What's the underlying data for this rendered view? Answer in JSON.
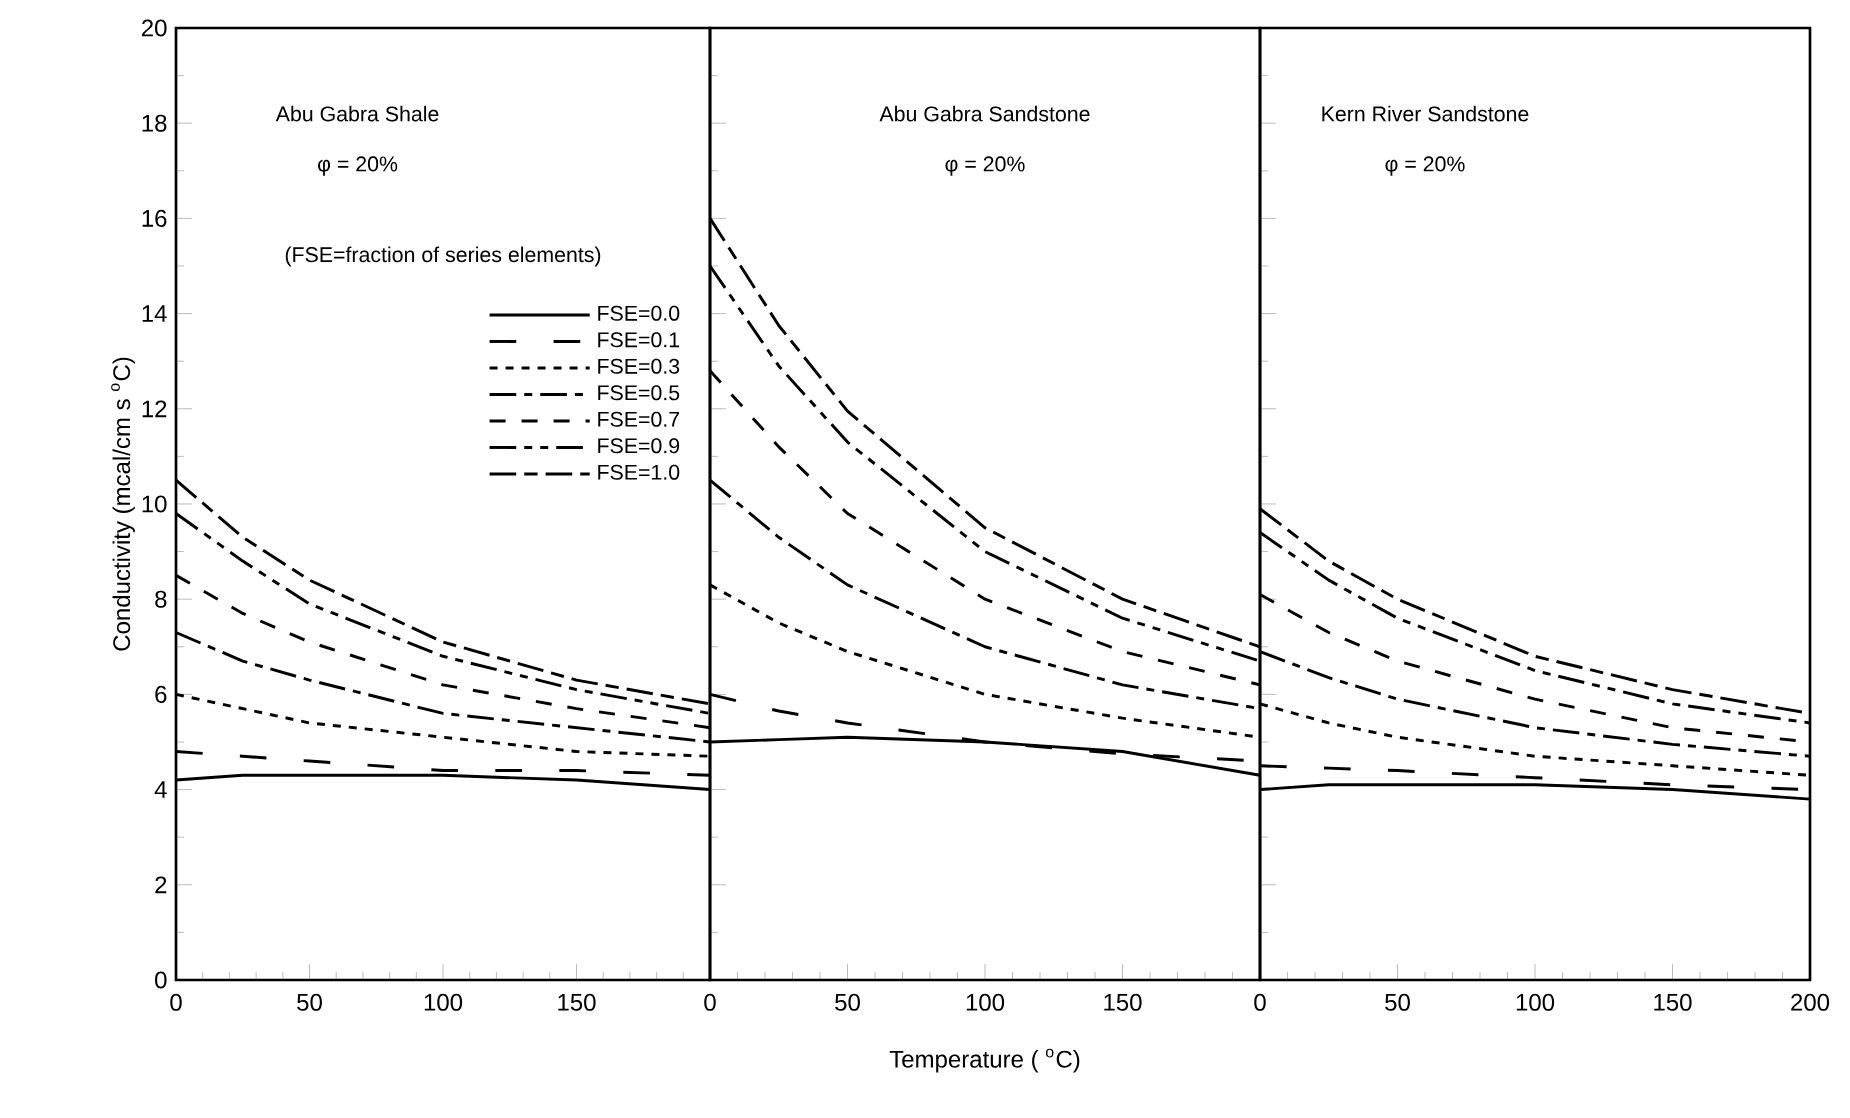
{
  "chart_data": [
    {
      "type": "line",
      "ylabel": "Conductivity (mcal/cm s $^{o}$C)",
      "xlim": [
        0,
        200
      ],
      "ylim": [
        0,
        20
      ],
      "xticks": [
        0,
        50,
        100,
        150,
        {
          "value": 200,
          "label": null
        }
      ],
      "yticks": [
        0,
        2,
        4,
        6,
        8,
        10,
        12,
        14,
        16,
        18,
        20
      ],
      "legend": "top right",
      "annotations": [
        "Abu Gabra Shale",
        "φ = 20%",
        "(FSE=fraction of series elements)"
      ],
      "x": [
        0,
        25,
        50,
        100,
        150,
        200
      ],
      "series": [
        {
          "name": "FSE=0.0",
          "color": "#000000",
          "line_style": "solid",
          "values": [
            4.2,
            4.3,
            4.3,
            4.3,
            4.2,
            4.0
          ]
        },
        {
          "name": "FSE=0.1",
          "color": "#000000",
          "line_style": "dashed",
          "values": [
            4.8,
            4.7,
            4.6,
            4.4,
            4.4,
            4.3
          ]
        },
        {
          "name": "FSE=0.3",
          "color": "#000000",
          "line_style": "dashed",
          "values": [
            6.0,
            5.7,
            5.4,
            5.1,
            4.8,
            4.7
          ]
        },
        {
          "name": "FSE=0.5",
          "color": "#000000",
          "line_style": "dashed",
          "values": [
            7.3,
            6.7,
            6.3,
            5.6,
            5.3,
            5.0
          ]
        },
        {
          "name": "FSE=0.7",
          "color": "#000000",
          "line_style": "dashed",
          "values": [
            8.5,
            7.7,
            7.1,
            6.2,
            5.7,
            5.3
          ]
        },
        {
          "name": "FSE=0.9",
          "color": "#000000",
          "line_style": "dashed",
          "values": [
            9.8,
            8.8,
            7.9,
            6.8,
            6.1,
            5.6
          ]
        },
        {
          "name": "FSE=1.0",
          "color": "#000000",
          "line_style": "dashed",
          "values": [
            10.5,
            9.3,
            8.4,
            7.1,
            6.3,
            5.8
          ]
        }
      ]
    },
    {
      "type": "line",
      "xlabel": "Temperature ( $^{o}$C)",
      "xlim": [
        0,
        200
      ],
      "ylim": [
        0,
        20
      ],
      "xticks": [
        0,
        50,
        100,
        150,
        {
          "value": 200,
          "label": null
        }
      ],
      "yticks": [
        0,
        2,
        4,
        6,
        8,
        10,
        12,
        14,
        16,
        18,
        20
      ],
      "tick_labels": "x",
      "annotations": [
        "Abu Gabra Sandstone",
        "φ = 20%"
      ],
      "x": [
        0,
        25,
        50,
        100,
        150,
        200
      ],
      "series": [
        {
          "color": "#000000",
          "line_style": "solid",
          "values": [
            5.0,
            5.05,
            5.1,
            5.0,
            4.8,
            4.3
          ]
        },
        {
          "color": "#000000",
          "line_style": "dashed",
          "values": [
            6.0,
            5.65,
            5.4,
            5.0,
            4.75,
            4.6
          ]
        },
        {
          "color": "#000000",
          "line_style": "dashed",
          "values": [
            8.3,
            7.5,
            6.9,
            6.0,
            5.5,
            5.1
          ]
        },
        {
          "color": "#000000",
          "line_style": "dashed",
          "values": [
            10.5,
            9.3,
            8.3,
            7.0,
            6.2,
            5.7
          ]
        },
        {
          "color": "#000000",
          "line_style": "dashed",
          "values": [
            12.8,
            11.2,
            9.8,
            8.0,
            6.9,
            6.2
          ]
        },
        {
          "color": "#000000",
          "line_style": "dashed",
          "values": [
            15.0,
            12.9,
            11.3,
            9.0,
            7.6,
            6.7
          ]
        },
        {
          "color": "#000000",
          "line_style": "dashed",
          "values": [
            16.0,
            13.75,
            11.95,
            9.5,
            8.0,
            7.0
          ]
        }
      ]
    },
    {
      "type": "line",
      "xlim": [
        0,
        200
      ],
      "ylim": [
        0,
        20
      ],
      "xticks": [
        0,
        50,
        100,
        150,
        200
      ],
      "yticks": [
        0,
        2,
        4,
        6,
        8,
        10,
        12,
        14,
        16,
        18,
        20
      ],
      "tick_labels": "x",
      "annotations": [
        "Kern River Sandstone",
        "φ = 20%"
      ],
      "x": [
        0,
        25,
        50,
        100,
        150,
        200
      ],
      "series": [
        {
          "color": "#000000",
          "line_style": "solid",
          "values": [
            4.0,
            4.1,
            4.1,
            4.1,
            4.0,
            3.8
          ]
        },
        {
          "color": "#000000",
          "line_style": "dashed",
          "values": [
            4.5,
            4.45,
            4.4,
            4.25,
            4.1,
            4.0
          ]
        },
        {
          "color": "#000000",
          "line_style": "dashed",
          "values": [
            5.8,
            5.4,
            5.1,
            4.7,
            4.5,
            4.3
          ]
        },
        {
          "color": "#000000",
          "line_style": "dashed",
          "values": [
            6.9,
            6.35,
            5.9,
            5.3,
            4.95,
            4.7
          ]
        },
        {
          "color": "#000000",
          "line_style": "dashed",
          "values": [
            8.1,
            7.3,
            6.7,
            5.9,
            5.3,
            5.0
          ]
        },
        {
          "color": "#000000",
          "line_style": "dashed",
          "values": [
            9.4,
            8.4,
            7.6,
            6.5,
            5.8,
            5.4
          ]
        },
        {
          "color": "#000000",
          "line_style": "dashed",
          "values": [
            9.9,
            8.8,
            8.0,
            6.8,
            6.1,
            5.6
          ]
        }
      ]
    }
  ]
}
